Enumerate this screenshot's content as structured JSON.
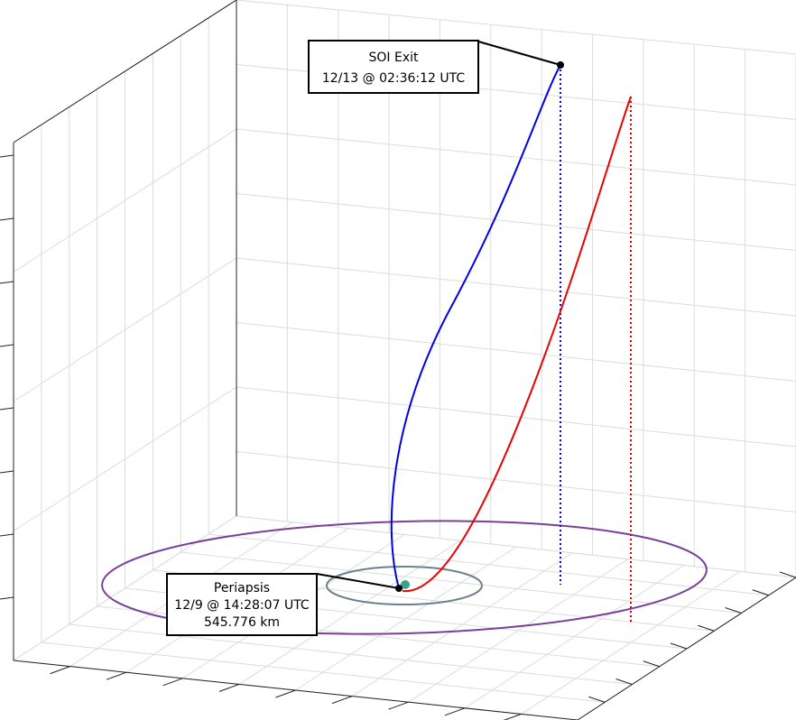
{
  "chart_data": {
    "type": "line3d",
    "annotations": [
      {
        "lines": [
          "SOI Exit",
          "12/13 @ 02:36:12 UTC"
        ]
      },
      {
        "lines": [
          "Periapsis",
          "12/9 @ 14:28:07 UTC",
          "545.776 km"
        ]
      }
    ]
  }
}
